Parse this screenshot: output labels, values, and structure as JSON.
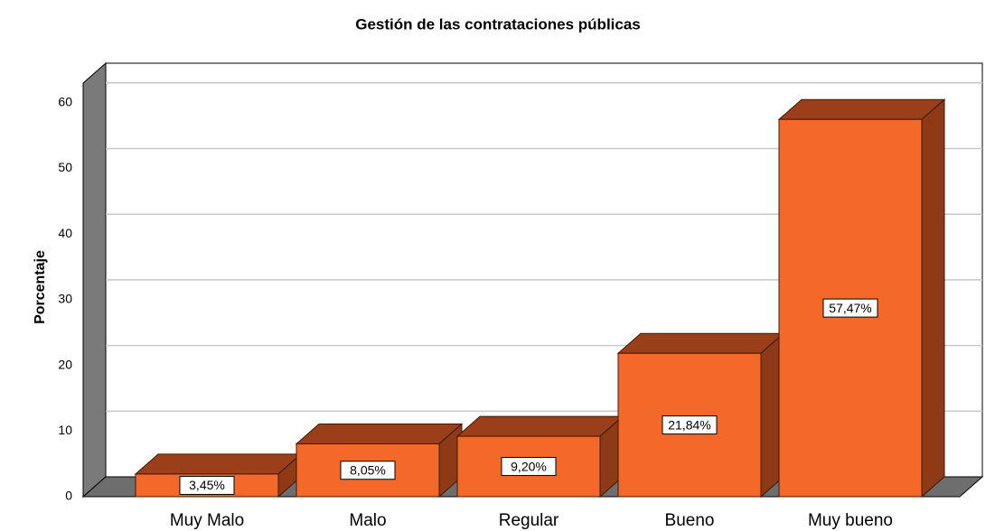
{
  "chart_data": {
    "type": "bar3d",
    "title": "Gestión de las contrataciones públicas",
    "y_label": "Porcentaje",
    "categories": [
      "Muy Malo",
      "Malo",
      "Regular",
      "Bueno",
      "Muy bueno"
    ],
    "values": [
      3.45,
      8.05,
      9.2,
      21.84,
      57.47
    ],
    "value_labels": [
      "3,45%",
      "8,05%",
      "9,20%",
      "21,84%",
      "57,47%"
    ],
    "color": "#f4692a",
    "ylim": [
      0,
      63
    ],
    "yticks": [
      0,
      10,
      20,
      30,
      40,
      50,
      60
    ],
    "grid": true
  }
}
